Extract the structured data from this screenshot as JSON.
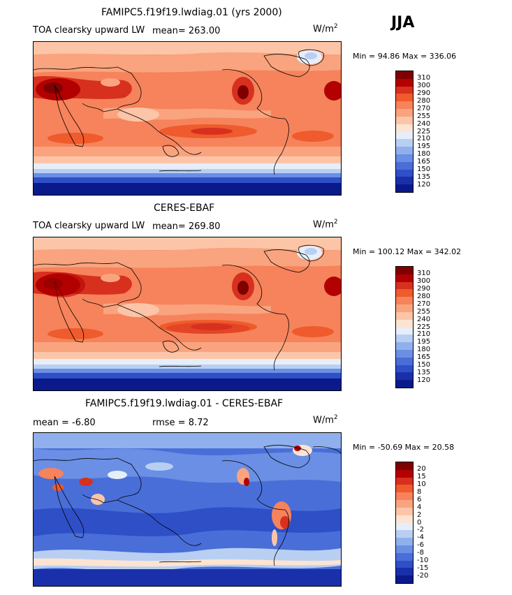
{
  "season": "JJA",
  "panels": [
    {
      "title": "FAMIPC5.f19f19.lwdiag.01 (yrs 2000)",
      "variable": "TOA clearsky upward LW",
      "stat_text": "mean= 263.00",
      "units_base": "W/m",
      "units_exp": "2",
      "minmax": "Min =  94.86 Max = 336.06",
      "kind": "abs"
    },
    {
      "title": "CERES-EBAF",
      "variable": "TOA clearsky upward LW",
      "stat_text": "mean= 269.80",
      "units_base": "W/m",
      "units_exp": "2",
      "minmax": "Min = 100.12 Max = 342.02",
      "kind": "abs"
    },
    {
      "title": "FAMIPC5.f19f19.lwdiag.01 - CERES-EBAF",
      "mean_text": "mean =   -6.80",
      "rmse_text": "rmse =    8.72",
      "units_base": "W/m",
      "units_exp": "2",
      "minmax": "Min = -50.69 Max =  20.58",
      "kind": "diff"
    }
  ],
  "colorbars": {
    "abs": {
      "labels": [
        "310",
        "300",
        "290",
        "280",
        "270",
        "255",
        "240",
        "225",
        "210",
        "195",
        "180",
        "165",
        "150",
        "135",
        "120"
      ],
      "colors": [
        "#7f0000",
        "#b30000",
        "#d7301f",
        "#ef5b2c",
        "#f6835b",
        "#f9a47f",
        "#fcc5a8",
        "#fde4d2",
        "#e6eefa",
        "#b9cff2",
        "#8fb0ec",
        "#6a8fe4",
        "#4a6ed8",
        "#2f4fc7",
        "#1a30aa",
        "#0a1a8a"
      ]
    },
    "diff": {
      "labels": [
        "20",
        "15",
        "10",
        "8",
        "6",
        "4",
        "2",
        "0",
        "-2",
        "-4",
        "-6",
        "-8",
        "-10",
        "-15",
        "-20"
      ],
      "colors": [
        "#7f0000",
        "#b30000",
        "#d7301f",
        "#ef5b2c",
        "#f6835b",
        "#f9a47f",
        "#fcc5a8",
        "#fde4d2",
        "#e6eefa",
        "#b9cff2",
        "#8fb0ec",
        "#6a8fe4",
        "#4a6ed8",
        "#2f4fc7",
        "#1a30aa",
        "#0a1a8a"
      ]
    }
  },
  "chart_data": [
    {
      "type": "heatmap",
      "title": "FAMIPC5.f19f19.lwdiag.01 (yrs 2000)",
      "subtitle": "TOA clearsky upward LW",
      "season": "JJA",
      "units": "W/m^2",
      "mean": 263.0,
      "min": 94.86,
      "max": 336.06,
      "contour_levels": [
        120,
        135,
        150,
        165,
        180,
        195,
        210,
        225,
        240,
        255,
        270,
        280,
        290,
        300,
        310
      ]
    },
    {
      "type": "heatmap",
      "title": "CERES-EBAF",
      "subtitle": "TOA clearsky upward LW",
      "season": "JJA",
      "units": "W/m^2",
      "mean": 269.8,
      "min": 100.12,
      "max": 342.02,
      "contour_levels": [
        120,
        135,
        150,
        165,
        180,
        195,
        210,
        225,
        240,
        255,
        270,
        280,
        290,
        300,
        310
      ]
    },
    {
      "type": "heatmap",
      "title": "FAMIPC5.f19f19.lwdiag.01 - CERES-EBAF",
      "season": "JJA",
      "units": "W/m^2",
      "mean": -6.8,
      "rmse": 8.72,
      "min": -50.69,
      "max": 20.58,
      "contour_levels": [
        -20,
        -15,
        -10,
        -8,
        -6,
        -4,
        -2,
        0,
        2,
        4,
        6,
        8,
        10,
        15,
        20
      ]
    }
  ]
}
